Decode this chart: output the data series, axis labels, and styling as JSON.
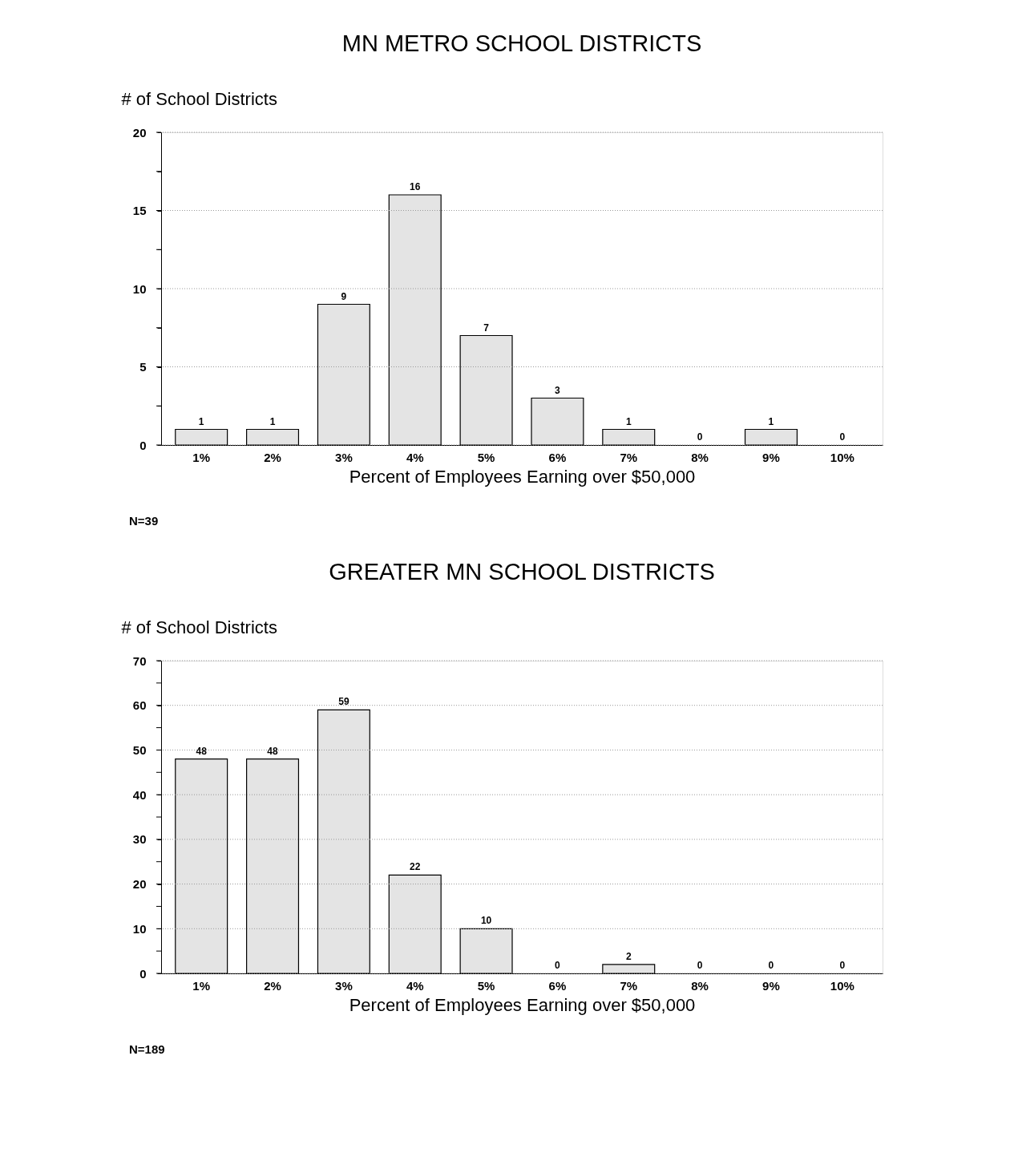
{
  "chart_data": [
    {
      "type": "bar",
      "title": "MN METRO SCHOOL DISTRICTS",
      "ylabel": "# of School Districts",
      "xlabel": "Percent of Employees Earning over $50,000",
      "categories": [
        "1%",
        "2%",
        "3%",
        "4%",
        "5%",
        "6%",
        "7%",
        "8%",
        "9%",
        "10%"
      ],
      "values": [
        1,
        1,
        9,
        16,
        7,
        3,
        1,
        0,
        1,
        0
      ],
      "color": "#e4e4e4",
      "data_labels": true,
      "ylim": [
        0,
        20
      ],
      "yticks": [
        0,
        {
          "value": 2.5,
          "label": null
        },
        5,
        {
          "value": 7.5,
          "label": null
        },
        10,
        {
          "value": 12.5,
          "label": null
        },
        15,
        {
          "value": 17.5,
          "label": null
        },
        20
      ],
      "grid": "y",
      "annotations": [
        "N=39"
      ]
    },
    {
      "type": "bar",
      "title": "GREATER MN SCHOOL DISTRICTS",
      "ylabel": "# of School Districts",
      "xlabel": "Percent of Employees Earning over $50,000",
      "categories": [
        "1%",
        "2%",
        "3%",
        "4%",
        "5%",
        "6%",
        "7%",
        "8%",
        "9%",
        "10%"
      ],
      "values": [
        48,
        48,
        59,
        22,
        10,
        0,
        2,
        0,
        0,
        0
      ],
      "color": "#e4e4e4",
      "data_labels": true,
      "ylim": [
        0,
        70
      ],
      "yticks": [
        0,
        {
          "value": 5,
          "label": null
        },
        10,
        {
          "value": 15,
          "label": null
        },
        20,
        {
          "value": 25,
          "label": null
        },
        30,
        {
          "value": 35,
          "label": null
        },
        40,
        {
          "value": 45,
          "label": null
        },
        50,
        {
          "value": 55,
          "label": null
        },
        60,
        {
          "value": 65,
          "label": null
        },
        70
      ],
      "grid": "y",
      "annotations": [
        "N=189"
      ]
    }
  ]
}
